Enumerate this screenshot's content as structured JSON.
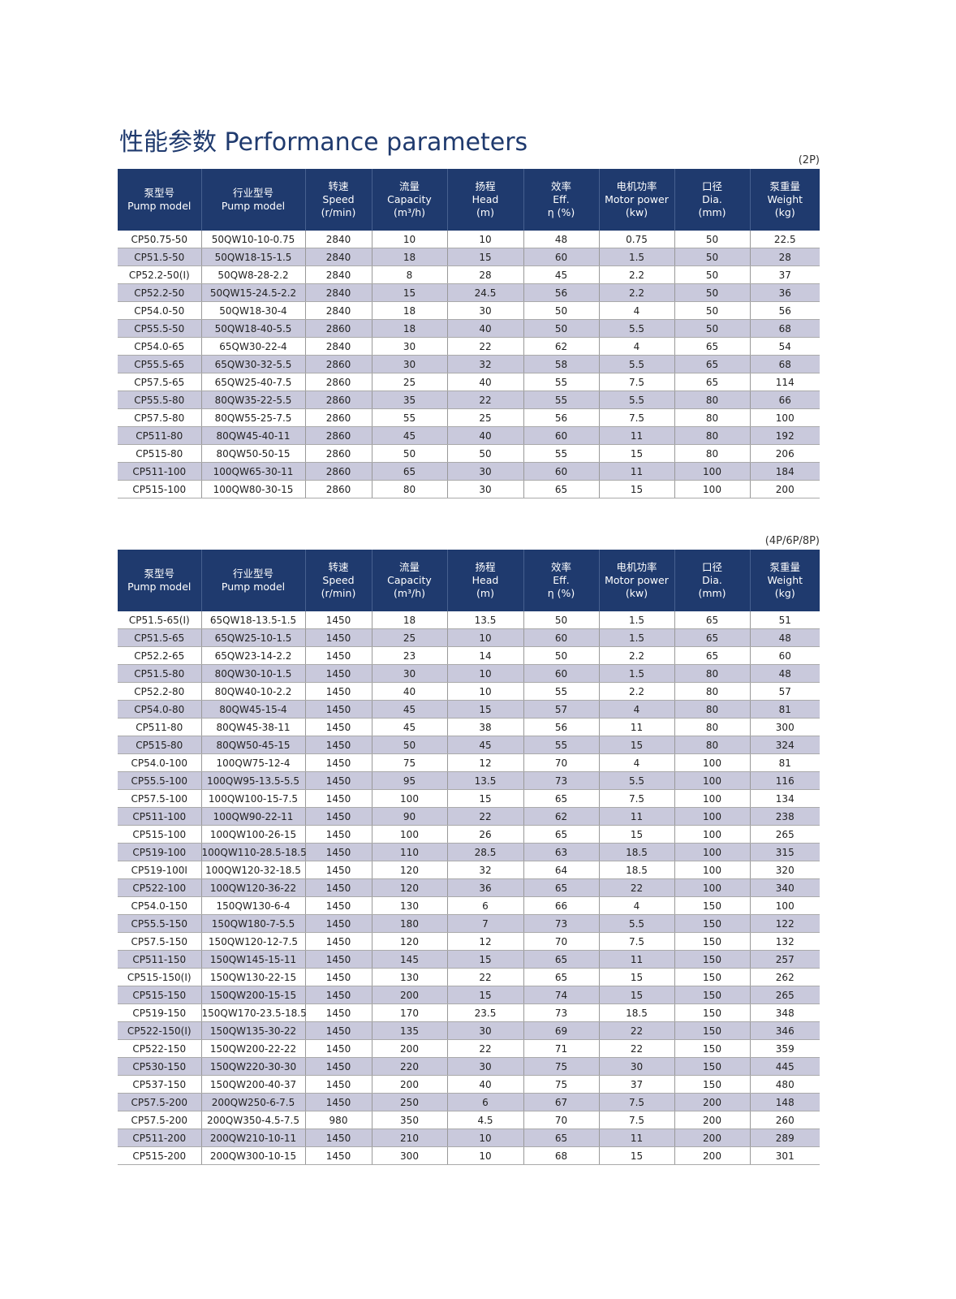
{
  "title": "性能参数 Performance parameters",
  "tables": [
    {
      "label": "(2P)",
      "columns": [
        [
          "泵型号",
          "Pump model"
        ],
        [
          "行业型号",
          "Pump model"
        ],
        [
          "转速",
          "Speed",
          "(r/min)"
        ],
        [
          "流量",
          "Capacity",
          "(m³/h)"
        ],
        [
          "扬程",
          "Head",
          "(m)"
        ],
        [
          "效率",
          "Eff.",
          "η (%)"
        ],
        [
          "电机功率",
          "Motor power",
          "(kw)"
        ],
        [
          "口径",
          "Dia.",
          "(mm)"
        ],
        [
          "泵重量",
          "Weight",
          "(kg)"
        ]
      ],
      "rows": [
        [
          "CP50.75-50",
          "50QW10-10-0.75",
          "2840",
          "10",
          "10",
          "48",
          "0.75",
          "50",
          "22.5"
        ],
        [
          "CP51.5-50",
          "50QW18-15-1.5",
          "2840",
          "18",
          "15",
          "60",
          "1.5",
          "50",
          "28"
        ],
        [
          "CP52.2-50(I)",
          "50QW8-28-2.2",
          "2840",
          "8",
          "28",
          "45",
          "2.2",
          "50",
          "37"
        ],
        [
          "CP52.2-50",
          "50QW15-24.5-2.2",
          "2840",
          "15",
          "24.5",
          "56",
          "2.2",
          "50",
          "36"
        ],
        [
          "CP54.0-50",
          "50QW18-30-4",
          "2840",
          "18",
          "30",
          "50",
          "4",
          "50",
          "56"
        ],
        [
          "CP55.5-50",
          "50QW18-40-5.5",
          "2860",
          "18",
          "40",
          "50",
          "5.5",
          "50",
          "68"
        ],
        [
          "CP54.0-65",
          "65QW30-22-4",
          "2840",
          "30",
          "22",
          "62",
          "4",
          "65",
          "54"
        ],
        [
          "CP55.5-65",
          "65QW30-32-5.5",
          "2860",
          "30",
          "32",
          "58",
          "5.5",
          "65",
          "68"
        ],
        [
          "CP57.5-65",
          "65QW25-40-7.5",
          "2860",
          "25",
          "40",
          "55",
          "7.5",
          "65",
          "114"
        ],
        [
          "CP55.5-80",
          "80QW35-22-5.5",
          "2860",
          "35",
          "22",
          "55",
          "5.5",
          "80",
          "66"
        ],
        [
          "CP57.5-80",
          "80QW55-25-7.5",
          "2860",
          "55",
          "25",
          "56",
          "7.5",
          "80",
          "100"
        ],
        [
          "CP511-80",
          "80QW45-40-11",
          "2860",
          "45",
          "40",
          "60",
          "11",
          "80",
          "192"
        ],
        [
          "CP515-80",
          "80QW50-50-15",
          "2860",
          "50",
          "50",
          "55",
          "15",
          "80",
          "206"
        ],
        [
          "CP511-100",
          "100QW65-30-11",
          "2860",
          "65",
          "30",
          "60",
          "11",
          "100",
          "184"
        ],
        [
          "CP515-100",
          "100QW80-30-15",
          "2860",
          "80",
          "30",
          "65",
          "15",
          "100",
          "200"
        ]
      ]
    },
    {
      "label": "(4P/6P/8P)",
      "columns": [
        [
          "泵型号",
          "Pump model"
        ],
        [
          "行业型号",
          "Pump model"
        ],
        [
          "转速",
          "Speed",
          "(r/min)"
        ],
        [
          "流量",
          "Capacity",
          "(m³/h)"
        ],
        [
          "扬程",
          "Head",
          "(m)"
        ],
        [
          "效率",
          "Eff.",
          "η (%)"
        ],
        [
          "电机功率",
          "Motor power",
          "(kw)"
        ],
        [
          "口径",
          "Dia.",
          "(mm)"
        ],
        [
          "泵重量",
          "Weight",
          "(kg)"
        ]
      ],
      "rows": [
        [
          "CP51.5-65(I)",
          "65QW18-13.5-1.5",
          "1450",
          "18",
          "13.5",
          "50",
          "1.5",
          "65",
          "51"
        ],
        [
          "CP51.5-65",
          "65QW25-10-1.5",
          "1450",
          "25",
          "10",
          "60",
          "1.5",
          "65",
          "48"
        ],
        [
          "CP52.2-65",
          "65QW23-14-2.2",
          "1450",
          "23",
          "14",
          "50",
          "2.2",
          "65",
          "60"
        ],
        [
          "CP51.5-80",
          "80QW30-10-1.5",
          "1450",
          "30",
          "10",
          "60",
          "1.5",
          "80",
          "48"
        ],
        [
          "CP52.2-80",
          "80QW40-10-2.2",
          "1450",
          "40",
          "10",
          "55",
          "2.2",
          "80",
          "57"
        ],
        [
          "CP54.0-80",
          "80QW45-15-4",
          "1450",
          "45",
          "15",
          "57",
          "4",
          "80",
          "81"
        ],
        [
          "CP511-80",
          "80QW45-38-11",
          "1450",
          "45",
          "38",
          "56",
          "11",
          "80",
          "300"
        ],
        [
          "CP515-80",
          "80QW50-45-15",
          "1450",
          "50",
          "45",
          "55",
          "15",
          "80",
          "324"
        ],
        [
          "CP54.0-100",
          "100QW75-12-4",
          "1450",
          "75",
          "12",
          "70",
          "4",
          "100",
          "81"
        ],
        [
          "CP55.5-100",
          "100QW95-13.5-5.5",
          "1450",
          "95",
          "13.5",
          "73",
          "5.5",
          "100",
          "116"
        ],
        [
          "CP57.5-100",
          "100QW100-15-7.5",
          "1450",
          "100",
          "15",
          "65",
          "7.5",
          "100",
          "134"
        ],
        [
          "CP511-100",
          "100QW90-22-11",
          "1450",
          "90",
          "22",
          "62",
          "11",
          "100",
          "238"
        ],
        [
          "CP515-100",
          "100QW100-26-15",
          "1450",
          "100",
          "26",
          "65",
          "15",
          "100",
          "265"
        ],
        [
          "CP519-100",
          "100QW110-28.5-18.5",
          "1450",
          "110",
          "28.5",
          "63",
          "18.5",
          "100",
          "315"
        ],
        [
          "CP519-100I",
          "100QW120-32-18.5",
          "1450",
          "120",
          "32",
          "64",
          "18.5",
          "100",
          "320"
        ],
        [
          "CP522-100",
          "100QW120-36-22",
          "1450",
          "120",
          "36",
          "65",
          "22",
          "100",
          "340"
        ],
        [
          "CP54.0-150",
          "150QW130-6-4",
          "1450",
          "130",
          "6",
          "66",
          "4",
          "150",
          "100"
        ],
        [
          "CP55.5-150",
          "150QW180-7-5.5",
          "1450",
          "180",
          "7",
          "73",
          "5.5",
          "150",
          "122"
        ],
        [
          "CP57.5-150",
          "150QW120-12-7.5",
          "1450",
          "120",
          "12",
          "70",
          "7.5",
          "150",
          "132"
        ],
        [
          "CP511-150",
          "150QW145-15-11",
          "1450",
          "145",
          "15",
          "65",
          "11",
          "150",
          "257"
        ],
        [
          "CP515-150(I)",
          "150QW130-22-15",
          "1450",
          "130",
          "22",
          "65",
          "15",
          "150",
          "262"
        ],
        [
          "CP515-150",
          "150QW200-15-15",
          "1450",
          "200",
          "15",
          "74",
          "15",
          "150",
          "265"
        ],
        [
          "CP519-150",
          "150QW170-23.5-18.5",
          "1450",
          "170",
          "23.5",
          "73",
          "18.5",
          "150",
          "348"
        ],
        [
          "CP522-150(I)",
          "150QW135-30-22",
          "1450",
          "135",
          "30",
          "69",
          "22",
          "150",
          "346"
        ],
        [
          "CP522-150",
          "150QW200-22-22",
          "1450",
          "200",
          "22",
          "71",
          "22",
          "150",
          "359"
        ],
        [
          "CP530-150",
          "150QW220-30-30",
          "1450",
          "220",
          "30",
          "75",
          "30",
          "150",
          "445"
        ],
        [
          "CP537-150",
          "150QW200-40-37",
          "1450",
          "200",
          "40",
          "75",
          "37",
          "150",
          "480"
        ],
        [
          "CP57.5-200",
          "200QW250-6-7.5",
          "1450",
          "250",
          "6",
          "67",
          "7.5",
          "200",
          "148"
        ],
        [
          "CP57.5-200",
          "200QW350-4.5-7.5",
          "980",
          "350",
          "4.5",
          "70",
          "7.5",
          "200",
          "260"
        ],
        [
          "CP511-200",
          "200QW210-10-11",
          "1450",
          "210",
          "10",
          "65",
          "11",
          "200",
          "289"
        ],
        [
          "CP515-200",
          "200QW300-10-15",
          "1450",
          "300",
          "10",
          "68",
          "15",
          "200",
          "301"
        ]
      ]
    }
  ]
}
